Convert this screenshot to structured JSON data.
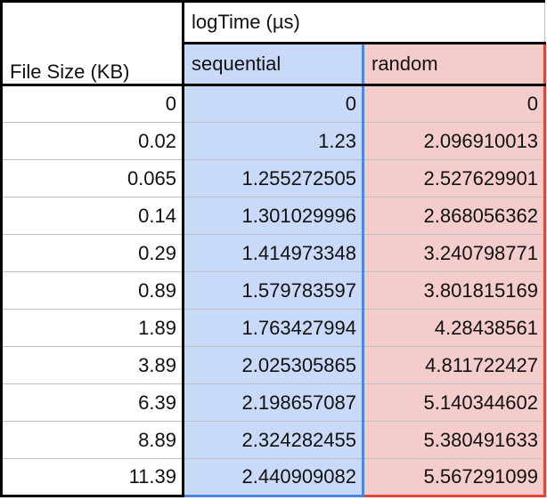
{
  "table": {
    "file_size_header": "File Size (KB)",
    "group_header": "logTime (µs)",
    "sequential_header": "sequential",
    "random_header": "random",
    "rows": [
      {
        "file_size": "0",
        "sequential": "0",
        "random": "0"
      },
      {
        "file_size": "0.02",
        "sequential": "1.23",
        "random": "2.096910013"
      },
      {
        "file_size": "0.065",
        "sequential": "1.255272505",
        "random": "2.527629901"
      },
      {
        "file_size": "0.14",
        "sequential": "1.301029996",
        "random": "2.868056362"
      },
      {
        "file_size": "0.29",
        "sequential": "1.414973348",
        "random": "3.240798771"
      },
      {
        "file_size": "0.89",
        "sequential": "1.579783597",
        "random": "3.801815169"
      },
      {
        "file_size": "1.89",
        "sequential": "1.763427994",
        "random": "4.28438561"
      },
      {
        "file_size": "3.89",
        "sequential": "2.025305865",
        "random": "4.811722427"
      },
      {
        "file_size": "6.39",
        "sequential": "2.198657087",
        "random": "5.140344602"
      },
      {
        "file_size": "8.89",
        "sequential": "2.324282455",
        "random": "5.380491633"
      },
      {
        "file_size": "11.39",
        "sequential": "2.440909082",
        "random": "5.567291099"
      }
    ]
  },
  "colors": {
    "sequential_fill": "#c9daf8",
    "sequential_border": "#4a86e8",
    "random_fill": "#f4cccc",
    "random_border": "#ea4335"
  }
}
